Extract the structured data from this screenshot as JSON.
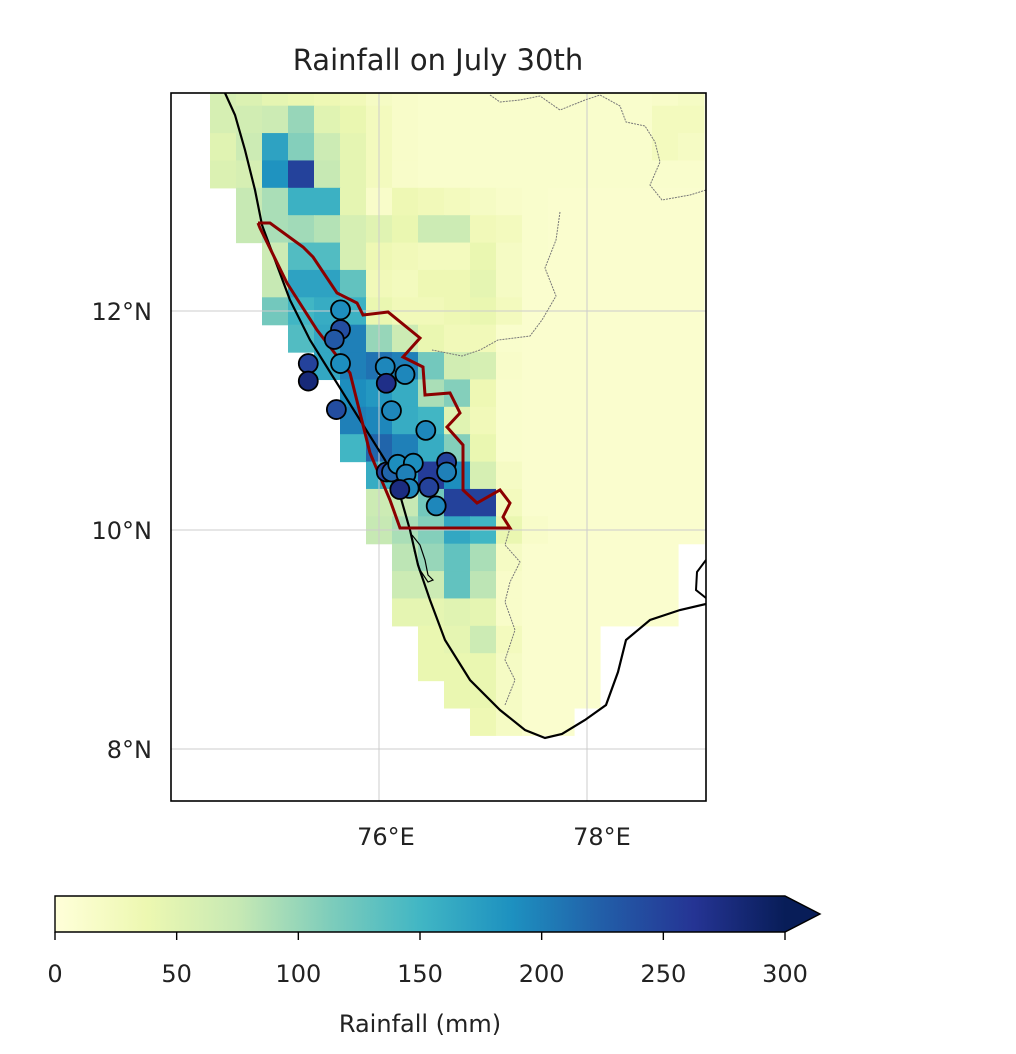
{
  "chart_data": {
    "type": "heatmap",
    "title": "Rainfall on July 30th",
    "xlim": [
      74.0,
      79.15
    ],
    "ylim": [
      7.52,
      14.0
    ],
    "grid": true,
    "x_ticks": [
      76,
      78
    ],
    "x_tick_labels": [
      "76°E",
      "78°E"
    ],
    "y_ticks": [
      8,
      10,
      12
    ],
    "y_tick_labels": [
      "8°N",
      "10°N",
      "12°N"
    ],
    "colormap": "YlGnBu",
    "colormap_stops": [
      "#ffffd9",
      "#edf8b1",
      "#c7e9b4",
      "#7fcdbb",
      "#41b6c4",
      "#1d91c0",
      "#225ea8",
      "#253494",
      "#081d58"
    ],
    "boundary_color": "#8b0000",
    "coastline_color": "#000000",
    "colorbar": {
      "label": "Rainfall (mm)",
      "range": [
        0,
        300
      ],
      "ticks": [
        0,
        50,
        100,
        150,
        200,
        250,
        300
      ],
      "tick_labels": [
        "0",
        "50",
        "100",
        "150",
        "200",
        "250",
        "300"
      ],
      "extend": "max",
      "placement": "bottom"
    },
    "grid_lons": [
      74.5,
      74.75,
      75.0,
      75.25,
      75.5,
      75.75,
      76.0,
      76.25,
      76.5,
      76.75,
      77.0,
      77.25,
      77.5,
      77.75,
      78.0,
      78.25,
      78.5,
      78.75,
      79.0
    ],
    "grid_lats": [
      14.0,
      13.75,
      13.5,
      13.25,
      13.0,
      12.75,
      12.5,
      12.25,
      12.0,
      11.75,
      11.5,
      11.25,
      11.0,
      10.75,
      10.5,
      10.25,
      10.0,
      9.75,
      9.5,
      9.25,
      9.0,
      8.75,
      8.5,
      8.25
    ],
    "grid_values_mm": [
      [
        60,
        55,
        45,
        40,
        35,
        30,
        20,
        15,
        12,
        12,
        12,
        12,
        12,
        12,
        12,
        12,
        12,
        15,
        20
      ],
      [
        60,
        65,
        70,
        100,
        50,
        40,
        25,
        15,
        12,
        12,
        12,
        12,
        12,
        12,
        12,
        12,
        12,
        25,
        25
      ],
      [
        50,
        70,
        170,
        110,
        70,
        45,
        25,
        15,
        12,
        12,
        12,
        12,
        12,
        12,
        12,
        12,
        12,
        25,
        20
      ],
      [
        55,
        60,
        185,
        250,
        75,
        45,
        25,
        15,
        12,
        12,
        12,
        12,
        12,
        12,
        12,
        12,
        12,
        12,
        12
      ],
      [
        null,
        75,
        90,
        155,
        155,
        45,
        15,
        35,
        30,
        25,
        20,
        15,
        12,
        10,
        10,
        10,
        10,
        10,
        10
      ],
      [
        null,
        75,
        90,
        95,
        85,
        60,
        50,
        40,
        70,
        70,
        30,
        25,
        12,
        10,
        10,
        10,
        10,
        10,
        10
      ],
      [
        null,
        null,
        70,
        140,
        140,
        60,
        35,
        30,
        25,
        25,
        40,
        20,
        12,
        10,
        10,
        10,
        10,
        10,
        10
      ],
      [
        null,
        null,
        75,
        170,
        170,
        130,
        30,
        25,
        35,
        35,
        45,
        20,
        10,
        10,
        10,
        10,
        10,
        10,
        10
      ],
      [
        null,
        null,
        120,
        150,
        160,
        155,
        40,
        30,
        30,
        35,
        40,
        25,
        10,
        10,
        10,
        10,
        10,
        10,
        10
      ],
      [
        null,
        null,
        null,
        140,
        165,
        200,
        100,
        70,
        40,
        30,
        30,
        12,
        10,
        10,
        10,
        10,
        10,
        10,
        10
      ],
      [
        null,
        null,
        null,
        null,
        165,
        200,
        210,
        200,
        120,
        65,
        60,
        15,
        10,
        10,
        10,
        10,
        10,
        10,
        10
      ],
      [
        null,
        null,
        null,
        null,
        null,
        190,
        180,
        160,
        90,
        110,
        35,
        12,
        10,
        10,
        10,
        10,
        10,
        10,
        10
      ],
      [
        null,
        null,
        null,
        null,
        null,
        200,
        195,
        160,
        150,
        50,
        30,
        12,
        10,
        10,
        10,
        10,
        10,
        10,
        10
      ],
      [
        null,
        null,
        null,
        null,
        null,
        150,
        220,
        200,
        160,
        110,
        40,
        12,
        10,
        10,
        10,
        10,
        10,
        10,
        10
      ],
      [
        null,
        null,
        null,
        null,
        null,
        null,
        160,
        180,
        255,
        190,
        60,
        20,
        10,
        10,
        10,
        10,
        10,
        10,
        10
      ],
      [
        null,
        null,
        null,
        null,
        null,
        null,
        70,
        75,
        120,
        250,
        250,
        25,
        10,
        10,
        10,
        10,
        10,
        10,
        10
      ],
      [
        null,
        null,
        null,
        null,
        null,
        null,
        75,
        90,
        110,
        165,
        150,
        40,
        15,
        10,
        10,
        10,
        10,
        10,
        10
      ],
      [
        null,
        null,
        null,
        null,
        null,
        null,
        null,
        80,
        100,
        130,
        90,
        20,
        10,
        10,
        10,
        10,
        10,
        10,
        null
      ],
      [
        null,
        null,
        null,
        null,
        null,
        null,
        null,
        70,
        70,
        130,
        80,
        15,
        10,
        10,
        10,
        10,
        10,
        10,
        null
      ],
      [
        null,
        null,
        null,
        null,
        null,
        null,
        null,
        45,
        45,
        50,
        45,
        15,
        10,
        10,
        10,
        10,
        10,
        10,
        null
      ],
      [
        null,
        null,
        null,
        null,
        null,
        null,
        null,
        null,
        40,
        45,
        70,
        25,
        10,
        10,
        10,
        null,
        null,
        null,
        null
      ],
      [
        null,
        null,
        null,
        null,
        null,
        null,
        null,
        null,
        40,
        40,
        40,
        20,
        10,
        10,
        10,
        null,
        null,
        null,
        null
      ],
      [
        null,
        null,
        null,
        null,
        null,
        null,
        null,
        null,
        null,
        40,
        40,
        20,
        10,
        10,
        10,
        null,
        null,
        null,
        null
      ],
      [
        null,
        null,
        null,
        null,
        null,
        null,
        null,
        null,
        null,
        null,
        35,
        20,
        10,
        10,
        null,
        null,
        null,
        null,
        null
      ]
    ],
    "stations": [
      {
        "lon": 75.63,
        "lat": 12.01,
        "value": 190
      },
      {
        "lon": 75.63,
        "lat": 11.83,
        "value": 240
      },
      {
        "lon": 75.57,
        "lat": 11.74,
        "value": 230
      },
      {
        "lon": 75.32,
        "lat": 11.52,
        "value": 250
      },
      {
        "lon": 75.32,
        "lat": 11.36,
        "value": 280
      },
      {
        "lon": 75.63,
        "lat": 11.52,
        "value": 190
      },
      {
        "lon": 76.06,
        "lat": 11.49,
        "value": 195
      },
      {
        "lon": 76.07,
        "lat": 11.34,
        "value": 270
      },
      {
        "lon": 76.25,
        "lat": 11.42,
        "value": 195
      },
      {
        "lon": 75.59,
        "lat": 11.1,
        "value": 240
      },
      {
        "lon": 76.12,
        "lat": 11.09,
        "value": 195
      },
      {
        "lon": 76.45,
        "lat": 10.91,
        "value": 195
      },
      {
        "lon": 76.07,
        "lat": 10.53,
        "value": 250
      },
      {
        "lon": 76.12,
        "lat": 10.53,
        "value": 220
      },
      {
        "lon": 76.18,
        "lat": 10.6,
        "value": 190
      },
      {
        "lon": 76.33,
        "lat": 10.61,
        "value": 190
      },
      {
        "lon": 76.26,
        "lat": 10.51,
        "value": 200
      },
      {
        "lon": 76.29,
        "lat": 10.38,
        "value": 195
      },
      {
        "lon": 76.2,
        "lat": 10.37,
        "value": 275
      },
      {
        "lon": 76.48,
        "lat": 10.39,
        "value": 250
      },
      {
        "lon": 76.65,
        "lat": 10.62,
        "value": 250
      },
      {
        "lon": 76.65,
        "lat": 10.53,
        "value": 200
      },
      {
        "lon": 76.55,
        "lat": 10.22,
        "value": 195
      }
    ]
  }
}
